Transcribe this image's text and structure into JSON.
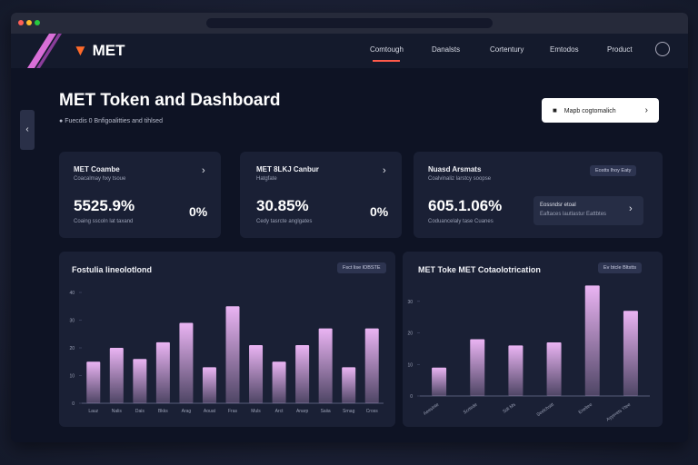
{
  "brand": "MET",
  "nav": [
    "Comtough",
    "Danalsts",
    "Cortentury",
    "Emtodos",
    "Product"
  ],
  "header": {
    "title": "MET Token and Dashboard",
    "subtitle": "Fuecdis 0 Bnfigoalitties and tihlsed",
    "button": "Mapb cogtomalich"
  },
  "cards": [
    {
      "title": "MET Coambe",
      "subtitle": "Coacalmay hxy tsoue",
      "value": "5525.9%",
      "caption": "Coaing sscoln lat taxand",
      "side": "0%"
    },
    {
      "title": "MET 8LKJ Canbur",
      "subtitle": "Hatgfate",
      "value": "30.85%",
      "caption": "Cedy tasrcte anglgates",
      "side": "0%"
    },
    {
      "title": "Nuasd Arsmats",
      "subtitle": "Coalvinaliz larstcy soopse",
      "value": "605.1.06%",
      "caption": "Coduancelaly tase Cuanes",
      "badge": "Eostts lhoy Eaty",
      "box_title": "Eossndsr etoal",
      "box_text": "Eaftaces lautlastur Eattbtes"
    }
  ],
  "charts": [
    {
      "type": "bar",
      "title": "Fostulia lineolotlond",
      "badge": "Fsct lise lOBSTE",
      "color": "#eab4f3",
      "categories": [
        "Lauz",
        "Nalis",
        "Dais",
        "Bkks",
        "Arag",
        "Aouat",
        "Fras",
        "Muls",
        "Arct",
        "Anarp",
        "Saiia",
        "Srnag",
        "Cross"
      ],
      "values": [
        15,
        20,
        16,
        22,
        29,
        13,
        35,
        21,
        15,
        21,
        27,
        13,
        27
      ],
      "ylim": [
        0,
        40
      ],
      "yticks": [
        0,
        10,
        20,
        30,
        40
      ]
    },
    {
      "type": "bar",
      "title": "MET Toke MET Cotaolotrication",
      "badge": "Ev btcle Bltstts",
      "color": "#eab4f3",
      "categories": [
        "Aeeslnte",
        "Scrtede",
        "Sdt Ms",
        "Seelchsitt",
        "Eneltee",
        "Ayyerets Ytee"
      ],
      "values": [
        9,
        18,
        16,
        17,
        35,
        27
      ],
      "ylim": [
        0,
        38
      ],
      "yticks": [
        0,
        10,
        20,
        30
      ]
    }
  ]
}
